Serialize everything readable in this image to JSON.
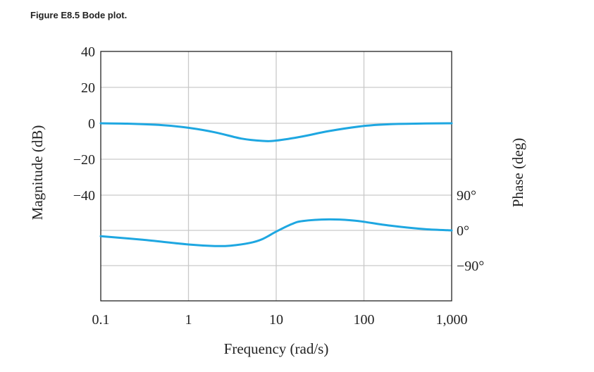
{
  "caption": "Figure E8.5 Bode plot.",
  "chart_data": {
    "type": "line",
    "xlabel": "Frequency (rad/s)",
    "ylabel_left": "Magnitude (dB)",
    "ylabel_right": "Phase (deg)",
    "x_scale": "log",
    "xlim": [
      0.1,
      1000
    ],
    "x_ticks": [
      "0.1",
      "1",
      "10",
      "100",
      "1,000"
    ],
    "y_left_ticks": [
      "40",
      "20",
      "0",
      "−20",
      "−40"
    ],
    "y_left_values": [
      40,
      20,
      0,
      -20,
      -40
    ],
    "y_right_ticks": [
      "90°",
      "0°",
      "−90°"
    ],
    "y_right_values": [
      90,
      0,
      -90
    ],
    "grid": true,
    "line_color": "#1ea7e1",
    "series": [
      {
        "quantity": "magnitude",
        "x": [
          0.1,
          0.2,
          0.5,
          1,
          2,
          4,
          7,
          10,
          20,
          40,
          100,
          200,
          500,
          1000
        ],
        "y": [
          0,
          -0.2,
          -1,
          -2.5,
          -5,
          -8.5,
          -9.8,
          -9.6,
          -7.3,
          -4.3,
          -1.5,
          -0.5,
          -0.1,
          0
        ]
      },
      {
        "quantity": "phase",
        "x": [
          0.1,
          0.3,
          1,
          2,
          3,
          5,
          7,
          10,
          15,
          20,
          40,
          70,
          100,
          200,
          500,
          1000
        ],
        "y": [
          -15,
          -24,
          -36,
          -40,
          -39,
          -32,
          -22,
          -3,
          16,
          24,
          28,
          26,
          22,
          12,
          3,
          0
        ]
      }
    ]
  }
}
